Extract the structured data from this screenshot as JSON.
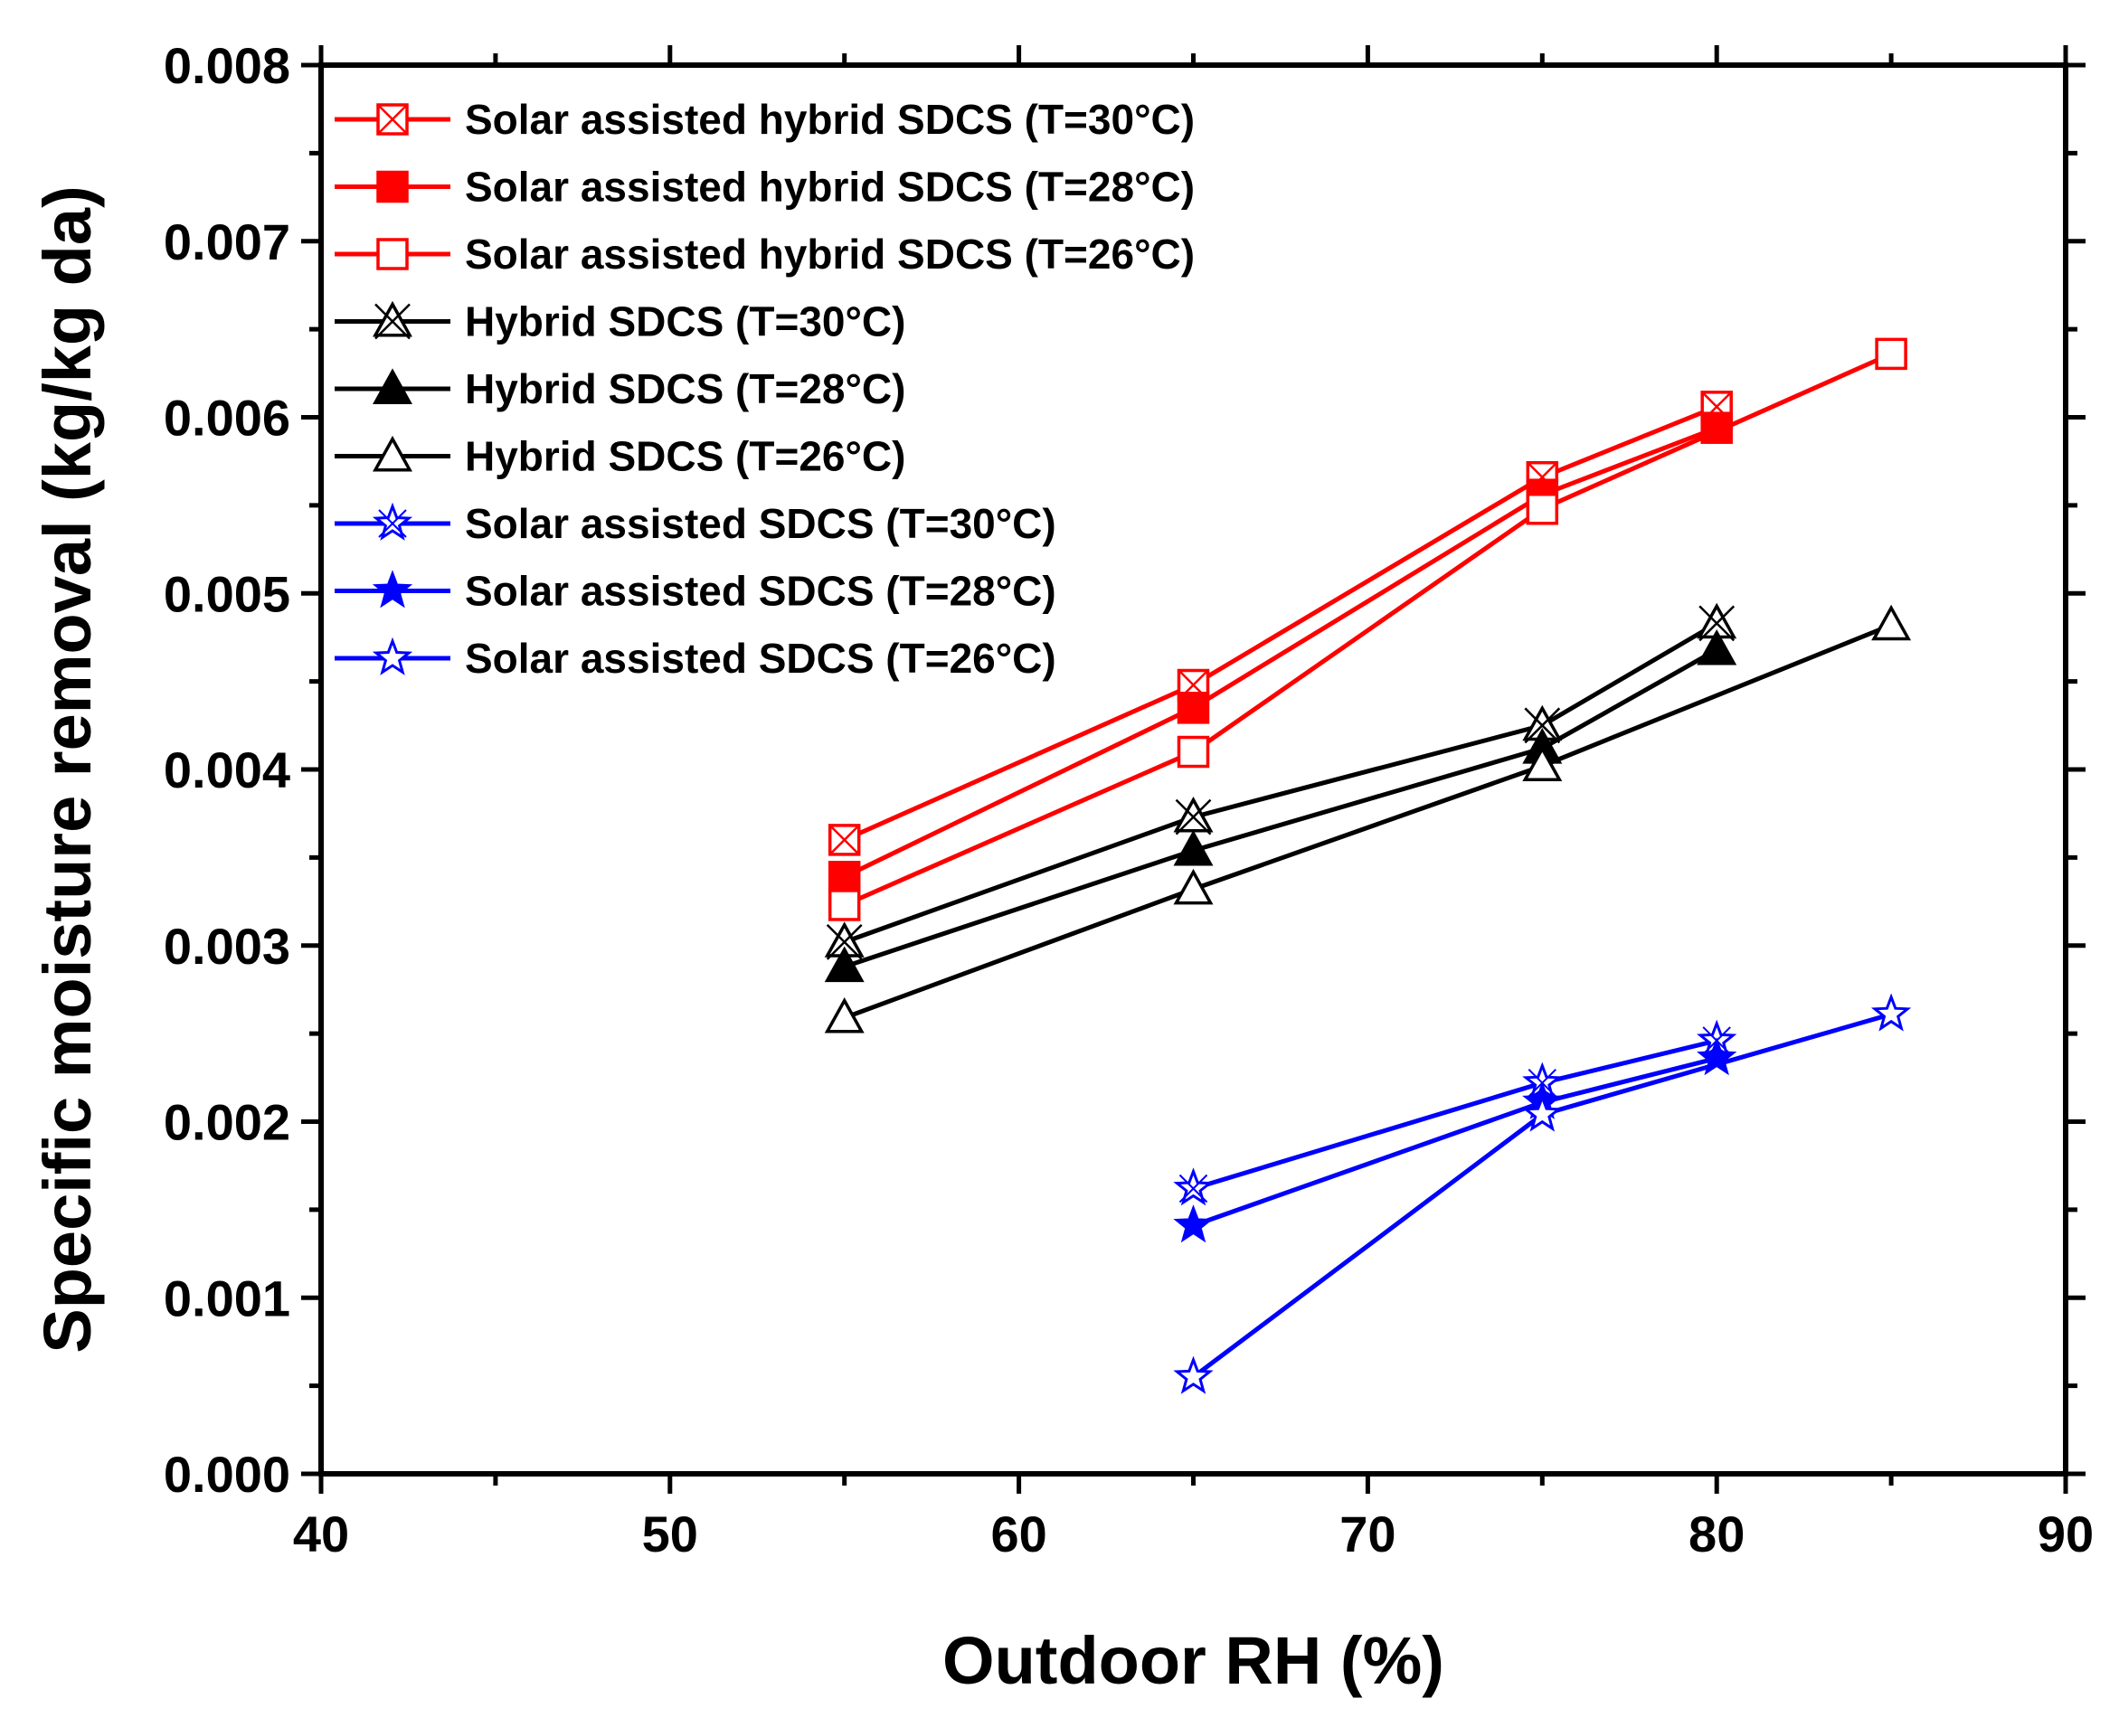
{
  "chart_data": {
    "type": "line",
    "xlabel": "Outdoor RH (%)",
    "ylabel": "Specific moisture removal (kg/kg da)",
    "xlim": [
      40,
      90
    ],
    "ylim": [
      0,
      0.008
    ],
    "x_ticks": [
      "40",
      "50",
      "60",
      "70",
      "80",
      "90"
    ],
    "y_ticks": [
      "0.000",
      "0.001",
      "0.002",
      "0.003",
      "0.004",
      "0.005",
      "0.006",
      "0.007",
      "0.008"
    ],
    "grid": false,
    "legend_position": "top-left",
    "series": [
      {
        "name": "Solar assisted hybrid SDCS (T=30°C)",
        "color": "#ff0000",
        "marker": "square-x",
        "x": [
          55,
          65,
          75,
          80
        ],
        "y": [
          0.0036,
          0.00448,
          0.00566,
          0.00606
        ]
      },
      {
        "name": "Solar assisted hybrid SDCS (T=28°C)",
        "color": "#ff0000",
        "marker": "square-filled",
        "x": [
          55,
          65,
          75,
          80
        ],
        "y": [
          0.00339,
          0.00435,
          0.00556,
          0.00594
        ]
      },
      {
        "name": "Solar assisted hybrid SDCS (T=26°C)",
        "color": "#ff0000",
        "marker": "square-open",
        "x": [
          55,
          65,
          75,
          85
        ],
        "y": [
          0.00323,
          0.0041,
          0.00548,
          0.00636
        ]
      },
      {
        "name": "Hybrid SDCS (T=30°C)",
        "color": "#000000",
        "marker": "triangle-x",
        "x": [
          55,
          65,
          75,
          80
        ],
        "y": [
          0.00302,
          0.00373,
          0.00425,
          0.00483
        ]
      },
      {
        "name": "Hybrid SDCS (T=28°C)",
        "color": "#000000",
        "marker": "triangle-filled",
        "x": [
          55,
          65,
          75,
          80
        ],
        "y": [
          0.00288,
          0.00354,
          0.00412,
          0.00468
        ]
      },
      {
        "name": "Hybrid SDCS (T=26°C)",
        "color": "#000000",
        "marker": "triangle-open",
        "x": [
          55,
          65,
          75,
          85
        ],
        "y": [
          0.00259,
          0.00332,
          0.00402,
          0.00482
        ]
      },
      {
        "name": "Solar assisted SDCS (T=30°C)",
        "color": "#0000ff",
        "marker": "star-x",
        "x": [
          65,
          75,
          80
        ],
        "y": [
          0.00162,
          0.00222,
          0.00246
        ]
      },
      {
        "name": "Solar assisted SDCS (T=28°C)",
        "color": "#0000ff",
        "marker": "star-filled",
        "x": [
          65,
          75,
          80
        ],
        "y": [
          0.00141,
          0.00211,
          0.00236
        ]
      },
      {
        "name": "Solar assisted SDCS (T=26°C)",
        "color": "#0000ff",
        "marker": "star-open",
        "x": [
          65,
          75,
          85
        ],
        "y": [
          0.00055,
          0.00204,
          0.00261
        ]
      }
    ]
  }
}
